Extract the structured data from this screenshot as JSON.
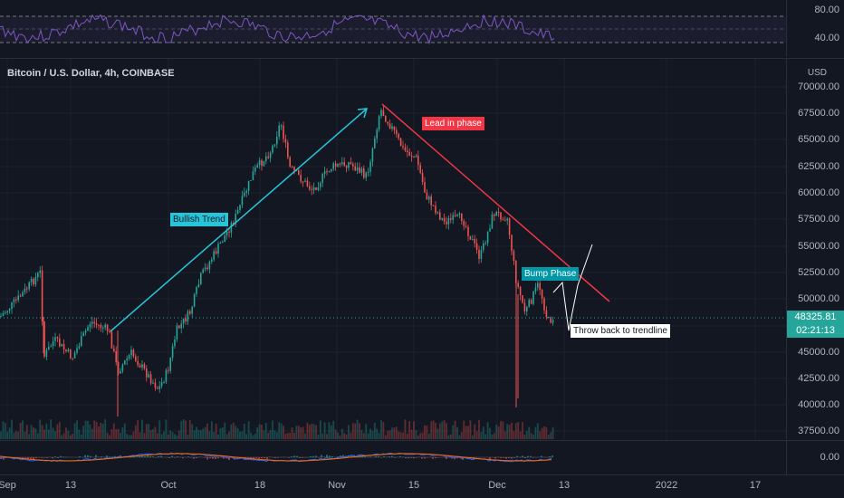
{
  "chart_title": "Bitcoin / U.S. Dollar, 4h, COINBASE",
  "currency": "USD",
  "rsi_axis": [
    "80.00",
    "40.00"
  ],
  "price_axis": [
    "70000.00",
    "67500.00",
    "65000.00",
    "62500.00",
    "60000.00",
    "57500.00",
    "55000.00",
    "52500.00",
    "50000.00",
    "47500.00",
    "45000.00",
    "42500.00",
    "40000.00",
    "37500.00"
  ],
  "macd_axis": "0.00",
  "x_axis": [
    "Sep",
    "13",
    "Oct",
    "18",
    "Nov",
    "15",
    "Dec",
    "13",
    "2022",
    "17"
  ],
  "last_price": "48325.81",
  "countdown": "02:21:13",
  "annotations": {
    "bullish": "Bullish Trend",
    "lead": "Lead in phase",
    "bump": "Bump Phase",
    "throwback": "Throw back to trendline"
  },
  "colors": {
    "background": "#131722",
    "up": "#26a69a",
    "down": "#ef5350",
    "rsi": "#7e57c2",
    "trend_up": "#26c6da",
    "trend_down": "#f23645"
  }
}
